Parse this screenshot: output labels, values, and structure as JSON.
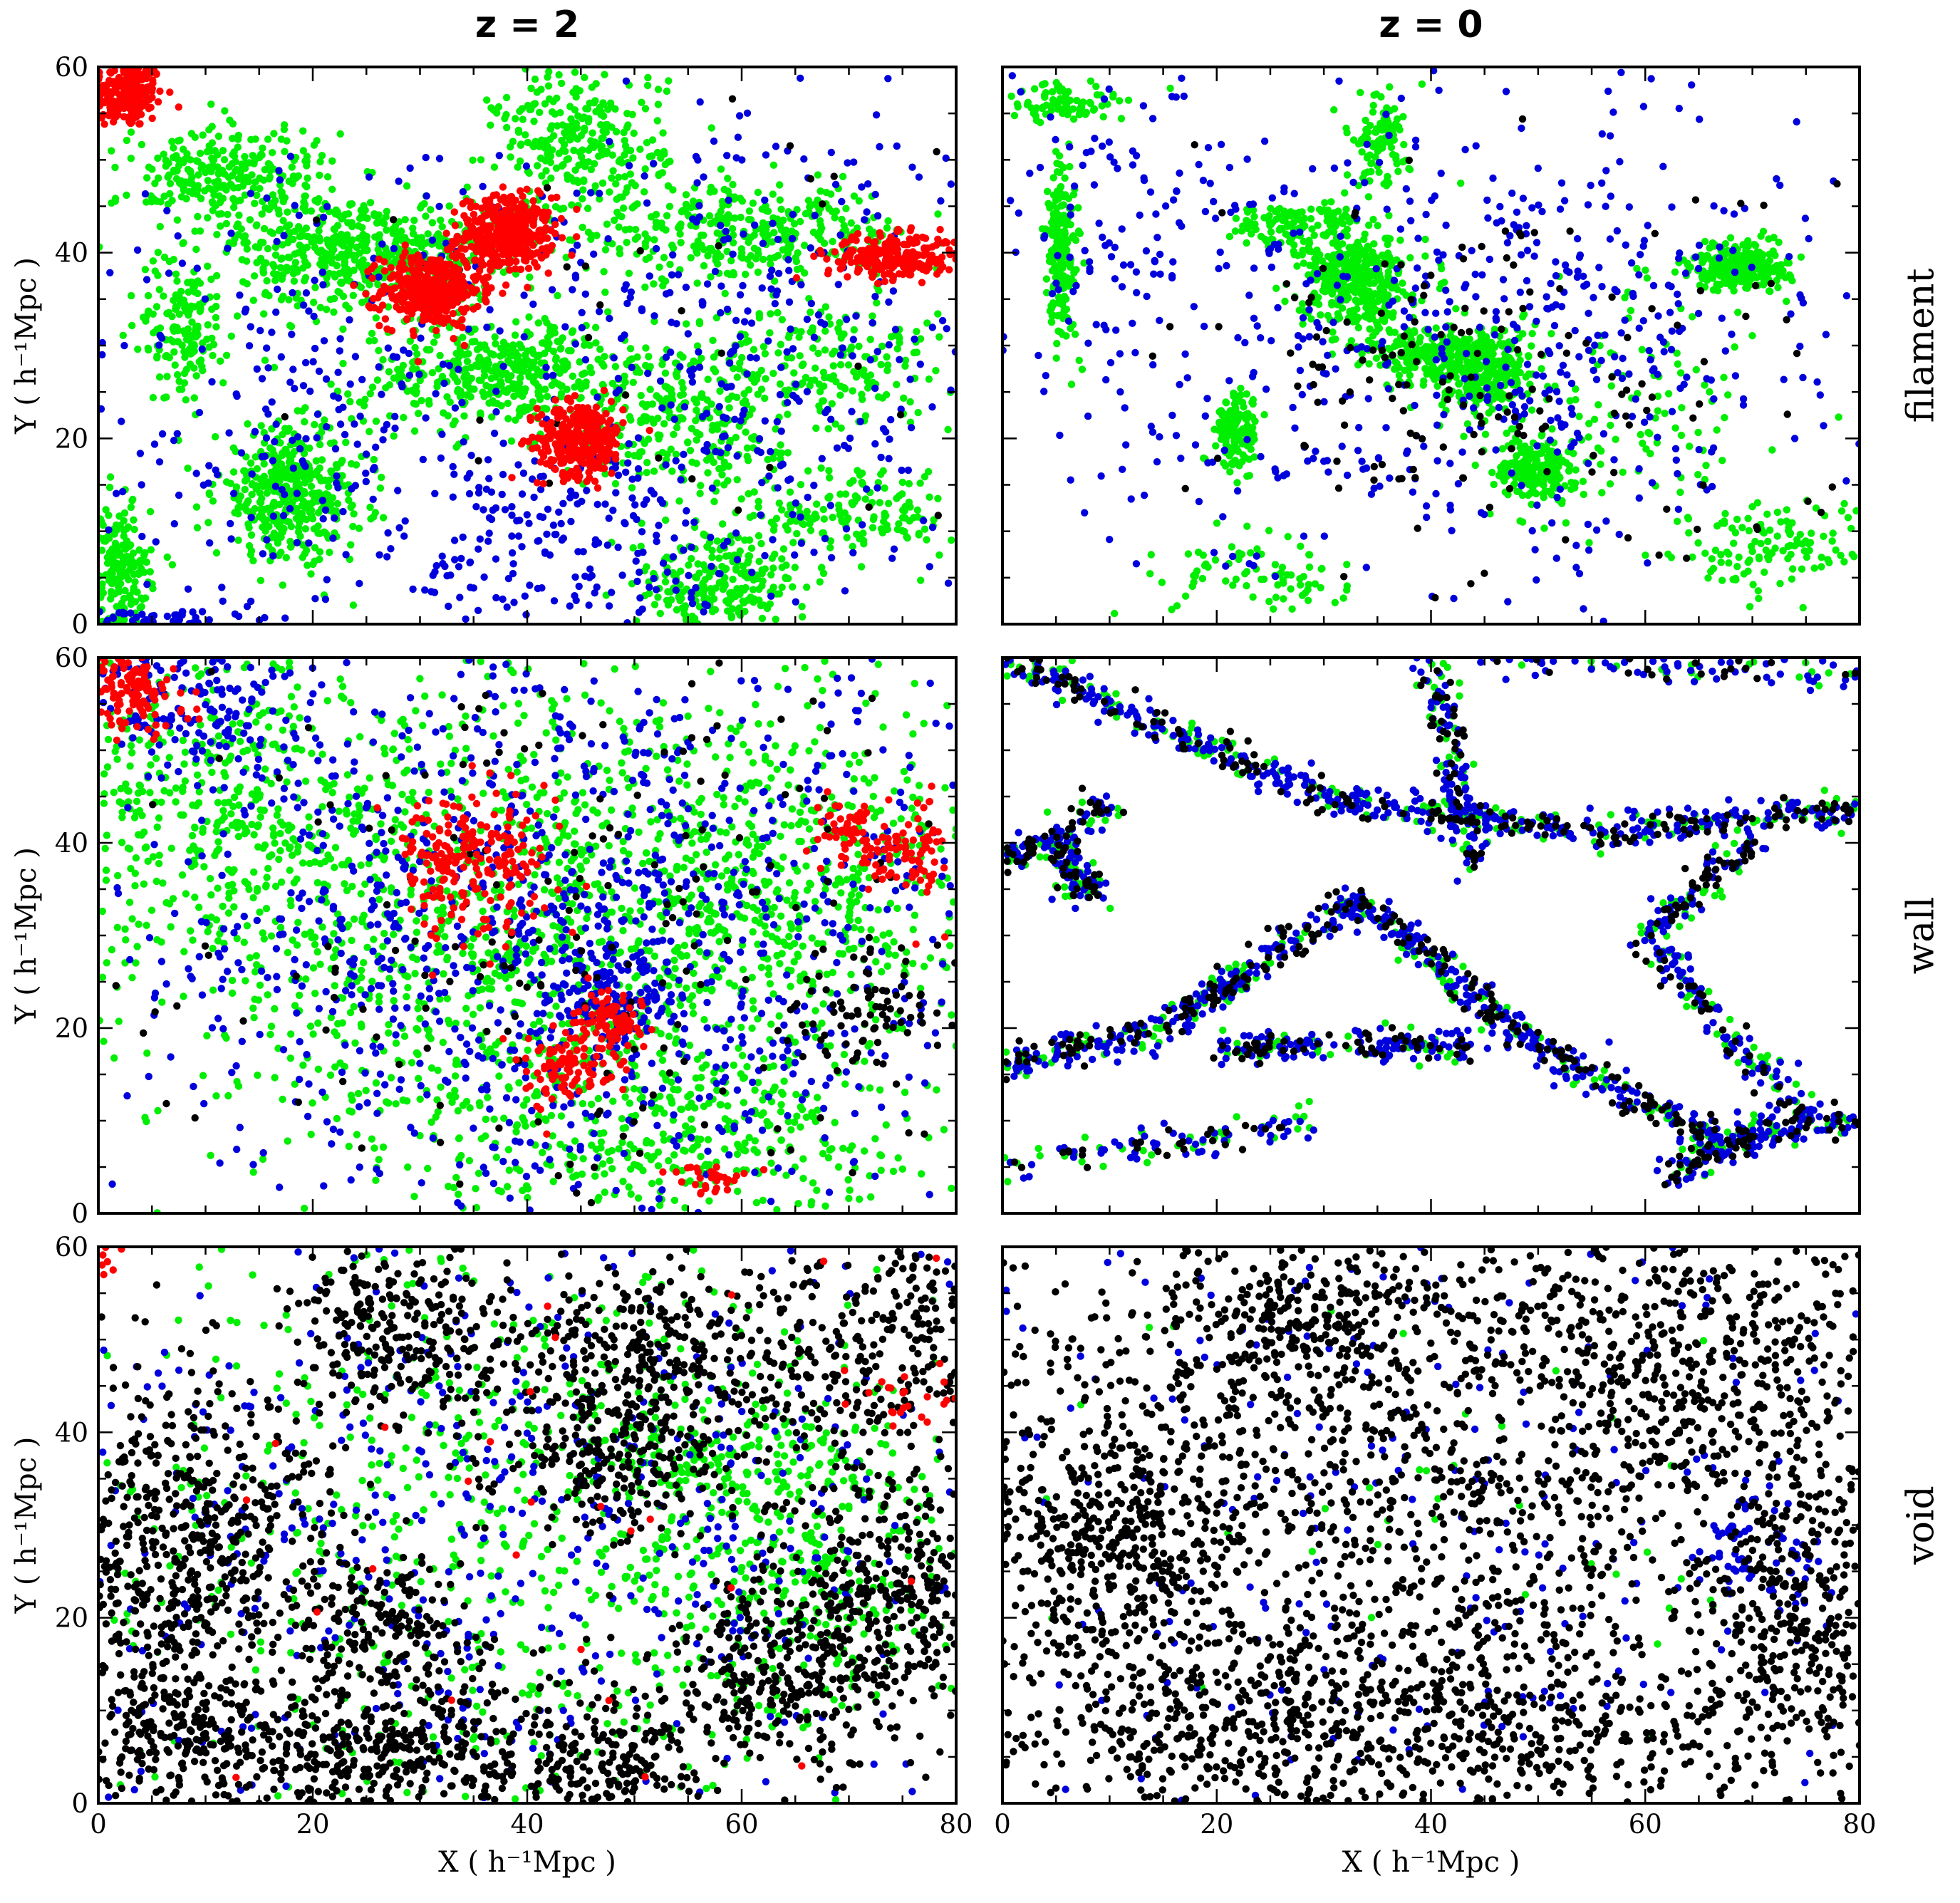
{
  "figure": {
    "column_titles": [
      "z = 2",
      "z = 0"
    ],
    "row_labels": [
      "filament",
      "wall",
      "void"
    ],
    "ylabel": "Y ( h⁻¹Mpc )",
    "xlabel": "X ( h⁻¹Mpc )",
    "xticks": [
      0,
      20,
      40,
      60,
      80
    ],
    "yticks": [
      0,
      20,
      40,
      60
    ],
    "xlim": [
      0,
      80
    ],
    "ylim": [
      0,
      60
    ],
    "colors": {
      "red": "#ff0000",
      "green": "#00ee00",
      "blue": "#0000dd",
      "black": "#000000"
    }
  },
  "chart_data": [
    {
      "type": "scatter",
      "column": "z = 2",
      "row": "filament",
      "xlim": [
        0,
        80
      ],
      "ylim": [
        0,
        60
      ],
      "xlabel": "",
      "ylabel": "Y ( h⁻¹Mpc )",
      "clusters": [
        {
          "color": "red",
          "x": 2.5,
          "y": 57,
          "sx": 1.8,
          "sy": 1.8,
          "n": 220
        },
        {
          "color": "red",
          "x": 38,
          "y": 42,
          "sx": 2.2,
          "sy": 2.0,
          "n": 380
        },
        {
          "color": "red",
          "x": 31,
          "y": 36,
          "sx": 2.3,
          "sy": 2.0,
          "n": 380
        },
        {
          "color": "red",
          "x": 45,
          "y": 20,
          "sx": 2.0,
          "sy": 2.0,
          "n": 330
        },
        {
          "color": "red",
          "x": 74,
          "y": 39.5,
          "sx": 3.0,
          "sy": 1.2,
          "n": 260
        },
        {
          "color": "green",
          "x": 25,
          "y": 40,
          "sx": 6,
          "sy": 3,
          "n": 500
        },
        {
          "color": "green",
          "x": 38,
          "y": 27,
          "sx": 7,
          "sy": 3,
          "n": 450
        },
        {
          "color": "green",
          "x": 18,
          "y": 14,
          "sx": 3.5,
          "sy": 3.5,
          "n": 420
        },
        {
          "color": "green",
          "x": 60,
          "y": 42,
          "sx": 8,
          "sy": 2.5,
          "n": 350
        },
        {
          "color": "green",
          "x": 12,
          "y": 48,
          "sx": 5,
          "sy": 3,
          "n": 300
        },
        {
          "color": "green",
          "x": 45,
          "y": 52,
          "sx": 4,
          "sy": 4,
          "n": 280
        },
        {
          "color": "green",
          "x": 2,
          "y": 5,
          "sx": 1.5,
          "sy": 4,
          "n": 200
        },
        {
          "color": "green",
          "x": 58,
          "y": 4,
          "sx": 4,
          "sy": 3,
          "n": 250
        },
        {
          "color": "green",
          "x": 55,
          "y": 22,
          "sx": 5,
          "sy": 4,
          "n": 250
        },
        {
          "color": "green",
          "x": 68,
          "y": 28,
          "sx": 6,
          "sy": 4,
          "n": 200
        },
        {
          "color": "green",
          "x": 72,
          "y": 12,
          "sx": 6,
          "sy": 3,
          "n": 180
        },
        {
          "color": "green",
          "x": 8,
          "y": 32,
          "sx": 2,
          "sy": 4,
          "n": 160
        },
        {
          "color": "blue",
          "x": 60,
          "y": 30,
          "sx": 14,
          "sy": 14,
          "n": 420
        },
        {
          "color": "blue",
          "x": 20,
          "y": 22,
          "sx": 12,
          "sy": 14,
          "n": 300
        },
        {
          "color": "blue",
          "x": 45,
          "y": 8,
          "sx": 8,
          "sy": 6,
          "n": 180
        },
        {
          "color": "blue",
          "x": 5,
          "y": 0.5,
          "sx": 5,
          "sy": 0.6,
          "n": 60
        },
        {
          "color": "black",
          "x": 55,
          "y": 30,
          "sx": 20,
          "sy": 18,
          "n": 45
        }
      ]
    },
    {
      "type": "scatter",
      "column": "z = 0",
      "row": "filament",
      "xlim": [
        0,
        80
      ],
      "ylim": [
        0,
        60
      ],
      "xlabel": "",
      "ylabel": "",
      "clusters": [
        {
          "color": "green",
          "x": 33,
          "y": 37,
          "sx": 2.5,
          "sy": 2.5,
          "n": 420
        },
        {
          "color": "green",
          "x": 45,
          "y": 27,
          "sx": 2.2,
          "sy": 2.2,
          "n": 300
        },
        {
          "color": "green",
          "x": 50,
          "y": 17,
          "sx": 1.8,
          "sy": 1.8,
          "n": 200
        },
        {
          "color": "green",
          "x": 69,
          "y": 38.5,
          "sx": 2.2,
          "sy": 1.2,
          "n": 280
        },
        {
          "color": "green",
          "x": 5.5,
          "y": 40,
          "sx": 0.8,
          "sy": 5,
          "n": 200
        },
        {
          "color": "green",
          "x": 22,
          "y": 21,
          "sx": 1.0,
          "sy": 2.0,
          "n": 150
        },
        {
          "color": "green",
          "x": 39,
          "y": 29,
          "sx": 3,
          "sy": 1.5,
          "n": 180
        },
        {
          "color": "green",
          "x": 27,
          "y": 43,
          "sx": 3,
          "sy": 1.2,
          "n": 120
        },
        {
          "color": "green",
          "x": 35,
          "y": 52,
          "sx": 1.5,
          "sy": 2.5,
          "n": 100
        },
        {
          "color": "green",
          "x": 6,
          "y": 56,
          "sx": 3,
          "sy": 1,
          "n": 80
        },
        {
          "color": "green",
          "x": 73,
          "y": 8,
          "sx": 5,
          "sy": 2.5,
          "n": 130
        },
        {
          "color": "green",
          "x": 60,
          "y": 22,
          "sx": 8,
          "sy": 8,
          "n": 120
        },
        {
          "color": "green",
          "x": 25,
          "y": 5,
          "sx": 5,
          "sy": 2,
          "n": 80
        },
        {
          "color": "blue",
          "x": 40,
          "y": 30,
          "sx": 14,
          "sy": 12,
          "n": 380
        },
        {
          "color": "blue",
          "x": 60,
          "y": 35,
          "sx": 12,
          "sy": 15,
          "n": 180
        },
        {
          "color": "blue",
          "x": 10,
          "y": 40,
          "sx": 6,
          "sy": 10,
          "n": 120
        },
        {
          "color": "black",
          "x": 42,
          "y": 28,
          "sx": 10,
          "sy": 10,
          "n": 140
        },
        {
          "color": "black",
          "x": 70,
          "y": 20,
          "sx": 10,
          "sy": 15,
          "n": 40
        }
      ]
    },
    {
      "type": "scatter",
      "column": "z = 2",
      "row": "wall",
      "xlim": [
        0,
        80
      ],
      "ylim": [
        0,
        60
      ],
      "xlabel": "",
      "ylabel": "Y ( h⁻¹Mpc )",
      "clusters": [
        {
          "color": "red",
          "x": 3,
          "y": 57,
          "sx": 2.5,
          "sy": 2.5,
          "n": 150
        },
        {
          "color": "red",
          "x": 32,
          "y": 38,
          "sx": 2,
          "sy": 4,
          "n": 110
        },
        {
          "color": "red",
          "x": 38,
          "y": 38,
          "sx": 2.5,
          "sy": 4,
          "n": 110
        },
        {
          "color": "red",
          "x": 48,
          "y": 21,
          "sx": 1.5,
          "sy": 1.5,
          "n": 80
        },
        {
          "color": "red",
          "x": 44,
          "y": 16,
          "sx": 2,
          "sy": 2,
          "n": 100
        },
        {
          "color": "red",
          "x": 75,
          "y": 39,
          "sx": 3,
          "sy": 2.5,
          "n": 100
        },
        {
          "color": "red",
          "x": 70,
          "y": 42,
          "sx": 1.5,
          "sy": 1.2,
          "n": 40
        },
        {
          "color": "red",
          "x": 57,
          "y": 4,
          "sx": 2,
          "sy": 1,
          "n": 30
        },
        {
          "color": "green",
          "x": 40,
          "y": 30,
          "sx": 18,
          "sy": 14,
          "n": 1400
        },
        {
          "color": "green",
          "x": 10,
          "y": 45,
          "sx": 8,
          "sy": 8,
          "n": 400
        },
        {
          "color": "green",
          "x": 65,
          "y": 35,
          "sx": 10,
          "sy": 10,
          "n": 400
        },
        {
          "color": "green",
          "x": 55,
          "y": 8,
          "sx": 12,
          "sy": 5,
          "n": 300
        },
        {
          "color": "blue",
          "x": 45,
          "y": 30,
          "sx": 22,
          "sy": 17,
          "n": 1200
        },
        {
          "color": "blue",
          "x": 10,
          "y": 55,
          "sx": 6,
          "sy": 4,
          "n": 150
        },
        {
          "color": "blue",
          "x": 48,
          "y": 24,
          "sx": 2.5,
          "sy": 2.5,
          "n": 120
        },
        {
          "color": "black",
          "x": 45,
          "y": 30,
          "sx": 22,
          "sy": 17,
          "n": 230
        },
        {
          "color": "black",
          "x": 72,
          "y": 22,
          "sx": 3,
          "sy": 3,
          "n": 70
        }
      ]
    },
    {
      "type": "scatter",
      "column": "z = 0",
      "row": "wall",
      "xlim": [
        0,
        80
      ],
      "ylim": [
        0,
        60
      ],
      "xlabel": "",
      "ylabel": "",
      "lines": [
        {
          "x0": 0,
          "y0": 60,
          "x1": 30,
          "y1": 45,
          "n": 260
        },
        {
          "x0": 30,
          "y0": 45,
          "x1": 55,
          "y1": 41,
          "n": 220
        },
        {
          "x0": 55,
          "y0": 41,
          "x1": 80,
          "y1": 44,
          "n": 200
        },
        {
          "x0": 33,
          "y0": 34,
          "x1": 15,
          "y1": 20,
          "n": 220
        },
        {
          "x0": 15,
          "y0": 20,
          "x1": 0,
          "y1": 16,
          "n": 140
        },
        {
          "x0": 33,
          "y0": 34,
          "x1": 50,
          "y1": 18,
          "n": 240
        },
        {
          "x0": 50,
          "y0": 18,
          "x1": 66,
          "y1": 8,
          "n": 180
        },
        {
          "x0": 66,
          "y0": 8,
          "x1": 80,
          "y1": 10,
          "n": 120
        },
        {
          "x0": 40,
          "y0": 60,
          "x1": 44,
          "y1": 38,
          "n": 160
        },
        {
          "x0": 20,
          "y0": 18,
          "x1": 45,
          "y1": 18,
          "n": 200
        },
        {
          "x0": 60,
          "y0": 30,
          "x1": 75,
          "y1": 10,
          "n": 160
        },
        {
          "x0": 0,
          "y0": 5,
          "x1": 30,
          "y1": 10,
          "n": 120
        },
        {
          "x0": 62,
          "y0": 4,
          "x1": 70,
          "y1": 8,
          "n": 90
        },
        {
          "x0": 5,
          "y0": 40,
          "x1": 8,
          "y1": 34,
          "n": 120
        },
        {
          "x0": 0,
          "y0": 38,
          "x1": 10,
          "y1": 44,
          "n": 120
        },
        {
          "x0": 60,
          "y0": 30,
          "x1": 70,
          "y1": 40,
          "n": 120
        },
        {
          "x0": 44,
          "y0": 60,
          "x1": 80,
          "y1": 58,
          "n": 120
        }
      ]
    },
    {
      "type": "scatter",
      "column": "z = 2",
      "row": "void",
      "xlim": [
        0,
        80
      ],
      "ylim": [
        0,
        60
      ],
      "xlabel": "X ( h⁻¹Mpc )",
      "ylabel": "Y ( h⁻¹Mpc )",
      "clusters": [
        {
          "color": "black",
          "x": 8,
          "y": 28,
          "sx": 7,
          "sy": 10,
          "n": 650
        },
        {
          "color": "black",
          "x": 27,
          "y": 6,
          "sx": 10,
          "sy": 5,
          "n": 550
        },
        {
          "color": "black",
          "x": 53,
          "y": 48,
          "sx": 9,
          "sy": 6,
          "n": 450
        },
        {
          "color": "black",
          "x": 73,
          "y": 22,
          "sx": 6,
          "sy": 8,
          "n": 450
        },
        {
          "color": "black",
          "x": 28,
          "y": 51,
          "sx": 5,
          "sy": 5,
          "n": 250
        },
        {
          "color": "black",
          "x": 48,
          "y": 36,
          "sx": 5,
          "sy": 4,
          "n": 200
        },
        {
          "color": "black",
          "x": 62,
          "y": 14,
          "sx": 5,
          "sy": 5,
          "n": 250
        },
        {
          "color": "black",
          "x": 6,
          "y": 8,
          "sx": 5,
          "sy": 4,
          "n": 200
        },
        {
          "color": "black",
          "x": 75,
          "y": 50,
          "sx": 5,
          "sy": 6,
          "n": 200
        },
        {
          "color": "black",
          "x": 27,
          "y": 20,
          "sx": 4,
          "sy": 4,
          "n": 150
        },
        {
          "color": "black",
          "x": 48,
          "y": 4,
          "sx": 4,
          "sy": 3,
          "n": 150
        },
        {
          "color": "blue",
          "x": 40,
          "y": 30,
          "sx": 24,
          "sy": 20,
          "n": 650
        },
        {
          "color": "green",
          "x": 40,
          "y": 30,
          "sx": 22,
          "sy": 18,
          "n": 750
        },
        {
          "color": "green",
          "x": 60,
          "y": 37,
          "sx": 8,
          "sy": 4,
          "n": 200
        },
        {
          "color": "green",
          "x": 65,
          "y": 22,
          "sx": 8,
          "sy": 6,
          "n": 180
        },
        {
          "color": "red",
          "x": 40,
          "y": 30,
          "sx": 25,
          "sy": 20,
          "n": 30
        },
        {
          "color": "red",
          "x": 77,
          "y": 44,
          "sx": 3,
          "sy": 1.5,
          "n": 25
        },
        {
          "color": "red",
          "x": 1,
          "y": 58,
          "sx": 1,
          "sy": 1.5,
          "n": 12
        }
      ]
    },
    {
      "type": "scatter",
      "column": "z = 0",
      "row": "void",
      "xlim": [
        0,
        80
      ],
      "ylim": [
        0,
        60
      ],
      "xlabel": "X ( h⁻¹Mpc )",
      "ylabel": "",
      "clusters": [
        {
          "color": "black",
          "x": 40,
          "y": 30,
          "sx": 30,
          "sy": 22,
          "n": 2200
        },
        {
          "color": "black",
          "x": 10,
          "y": 30,
          "sx": 6,
          "sy": 8,
          "n": 400
        },
        {
          "color": "black",
          "x": 30,
          "y": 52,
          "sx": 8,
          "sy": 5,
          "n": 300
        },
        {
          "color": "black",
          "x": 65,
          "y": 48,
          "sx": 10,
          "sy": 8,
          "n": 350
        },
        {
          "color": "black",
          "x": 75,
          "y": 20,
          "sx": 5,
          "sy": 10,
          "n": 300
        },
        {
          "color": "black",
          "x": 45,
          "y": 8,
          "sx": 12,
          "sy": 5,
          "n": 300
        },
        {
          "color": "black",
          "x": 20,
          "y": 8,
          "sx": 8,
          "sy": 5,
          "n": 250
        },
        {
          "color": "blue",
          "x": 40,
          "y": 30,
          "sx": 28,
          "sy": 20,
          "n": 320
        },
        {
          "color": "blue",
          "x": 70,
          "y": 27,
          "sx": 3,
          "sy": 3,
          "n": 60
        },
        {
          "color": "green",
          "x": 40,
          "y": 30,
          "sx": 28,
          "sy": 20,
          "n": 60
        }
      ]
    }
  ]
}
